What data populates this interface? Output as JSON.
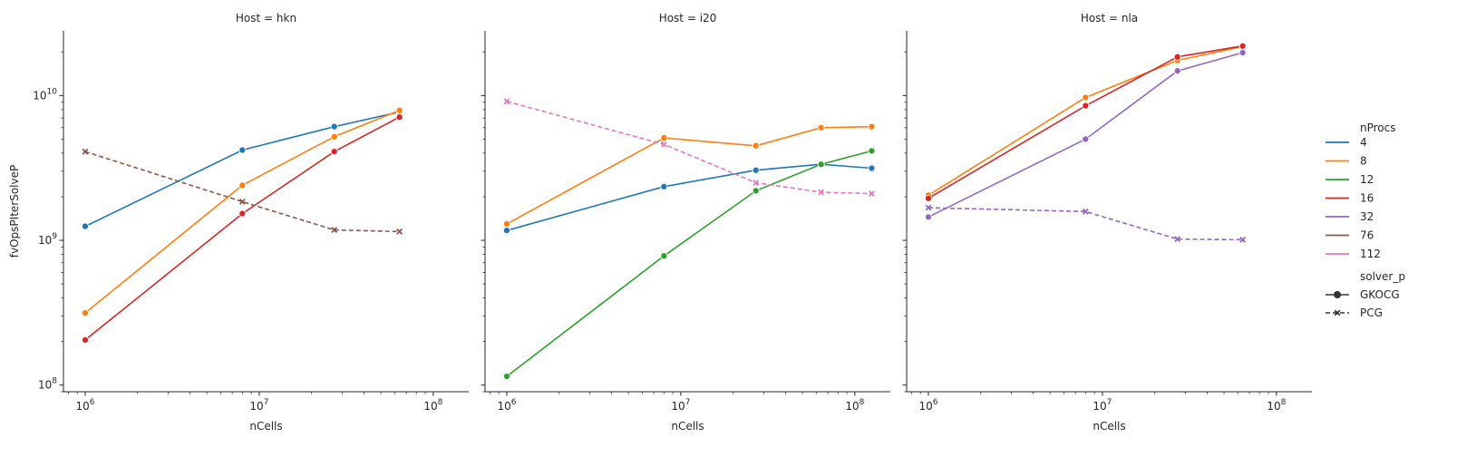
{
  "chart_data": [
    {
      "type": "line",
      "title": "Host = hkn",
      "xlabel": "nCells",
      "ylabel": "fvOpsPIterSolveP",
      "xscale": "log",
      "yscale": "log",
      "xlim": [
        750000,
        160000000
      ],
      "ylim": [
        90000000,
        28000000000
      ],
      "x_ticks": [
        {
          "value": 1000000,
          "base": "10",
          "exp": "6"
        },
        {
          "value": 10000000,
          "base": "10",
          "exp": "7"
        },
        {
          "value": 100000000,
          "base": "10",
          "exp": "8"
        }
      ],
      "y_ticks": [
        {
          "value": 100000000,
          "base": "10",
          "exp": "8"
        },
        {
          "value": 1000000000,
          "base": "10",
          "exp": "9"
        },
        {
          "value": 10000000000,
          "base": "10",
          "exp": "10"
        }
      ],
      "grid": false,
      "series": [
        {
          "name": "4",
          "solver": "GKOCG",
          "color": "#1f77b4",
          "x": [
            1000000,
            8000000,
            27000000,
            64000000
          ],
          "y": [
            1250000000,
            4200000000,
            6100000000,
            7700000000
          ]
        },
        {
          "name": "8",
          "solver": "GKOCG",
          "color": "#ff7f0e",
          "x": [
            1000000,
            8000000,
            27000000,
            64000000
          ],
          "y": [
            315000000,
            2400000000,
            5200000000,
            7900000000
          ]
        },
        {
          "name": "16",
          "solver": "GKOCG",
          "color": "#d62728",
          "x": [
            1000000,
            8000000,
            27000000,
            64000000
          ],
          "y": [
            205000000,
            1530000000,
            4100000000,
            7100000000
          ]
        },
        {
          "name": "76",
          "solver": "PCG",
          "color": "#8c564b",
          "x": [
            1000000,
            8000000,
            27000000,
            64000000
          ],
          "y": [
            4100000000,
            1850000000,
            1180000000,
            1150000000
          ]
        }
      ]
    },
    {
      "type": "line",
      "title": "Host = i20",
      "xlabel": "nCells",
      "ylabel": "",
      "xscale": "log",
      "yscale": "log",
      "xlim": [
        750000,
        160000000
      ],
      "ylim": [
        90000000,
        28000000000
      ],
      "x_ticks": [
        {
          "value": 1000000,
          "base": "10",
          "exp": "6"
        },
        {
          "value": 10000000,
          "base": "10",
          "exp": "7"
        },
        {
          "value": 100000000,
          "base": "10",
          "exp": "8"
        }
      ],
      "grid": false,
      "series": [
        {
          "name": "4",
          "solver": "GKOCG",
          "color": "#1f77b4",
          "x": [
            1000000,
            8000000,
            27000000,
            64000000,
            125000000
          ],
          "y": [
            1170000000,
            2350000000,
            3050000000,
            3350000000,
            3150000000
          ]
        },
        {
          "name": "8",
          "solver": "GKOCG",
          "color": "#ff7f0e",
          "x": [
            1000000,
            8000000,
            27000000,
            64000000,
            125000000
          ],
          "y": [
            1300000000,
            5100000000,
            4500000000,
            6000000000,
            6100000000
          ]
        },
        {
          "name": "12",
          "solver": "GKOCG",
          "color": "#2ca02c",
          "x": [
            1000000,
            8000000,
            27000000,
            64000000,
            125000000
          ],
          "y": [
            115000000,
            780000000,
            2200000000,
            3350000000,
            4150000000
          ]
        },
        {
          "name": "112",
          "solver": "PCG",
          "color": "#e377c2",
          "x": [
            1000000,
            8000000,
            27000000,
            64000000,
            125000000
          ],
          "y": [
            9100000000,
            4600000000,
            2500000000,
            2150000000,
            2100000000
          ]
        }
      ]
    },
    {
      "type": "line",
      "title": "Host = nla",
      "xlabel": "nCells",
      "ylabel": "",
      "xscale": "log",
      "yscale": "log",
      "xlim": [
        750000,
        160000000
      ],
      "ylim": [
        90000000,
        28000000000
      ],
      "x_ticks": [
        {
          "value": 1000000,
          "base": "10",
          "exp": "6"
        },
        {
          "value": 10000000,
          "base": "10",
          "exp": "7"
        },
        {
          "value": 100000000,
          "base": "10",
          "exp": "8"
        }
      ],
      "grid": false,
      "series": [
        {
          "name": "8",
          "solver": "GKOCG",
          "color": "#ff7f0e",
          "x": [
            1000000,
            8000000,
            27000000,
            64000000
          ],
          "y": [
            2050000000,
            9700000000,
            17500000000,
            21800000000
          ]
        },
        {
          "name": "16",
          "solver": "GKOCG",
          "color": "#d62728",
          "x": [
            1000000,
            8000000,
            27000000,
            64000000
          ],
          "y": [
            1950000000,
            8500000000,
            18500000000,
            22000000000
          ]
        },
        {
          "name": "32",
          "solver": "GKOCG",
          "color": "#9467bd",
          "x": [
            1000000,
            8000000,
            27000000,
            64000000
          ],
          "y": [
            1450000000,
            5000000000,
            14800000000,
            19800000000
          ]
        },
        {
          "name": "32",
          "solver": "PCG",
          "color": "#9467bd",
          "x": [
            1000000,
            8000000,
            27000000,
            64000000
          ],
          "y": [
            1680000000,
            1580000000,
            1020000000,
            1010000000
          ]
        }
      ]
    }
  ],
  "legend": {
    "placement": "right",
    "hue_title": "nProcs",
    "hue_entries": [
      {
        "label": "4",
        "color": "#1f77b4"
      },
      {
        "label": "8",
        "color": "#ff7f0e"
      },
      {
        "label": "12",
        "color": "#2ca02c"
      },
      {
        "label": "16",
        "color": "#d62728"
      },
      {
        "label": "32",
        "color": "#9467bd"
      },
      {
        "label": "76",
        "color": "#8c564b"
      },
      {
        "label": "112",
        "color": "#e377c2"
      }
    ],
    "style_title": "solver_p",
    "style_entries": [
      {
        "label": "GKOCG",
        "marker": "circle",
        "line": "solid"
      },
      {
        "label": "PCG",
        "marker": "x",
        "line": "dashed"
      }
    ],
    "style_color": "#333333"
  }
}
